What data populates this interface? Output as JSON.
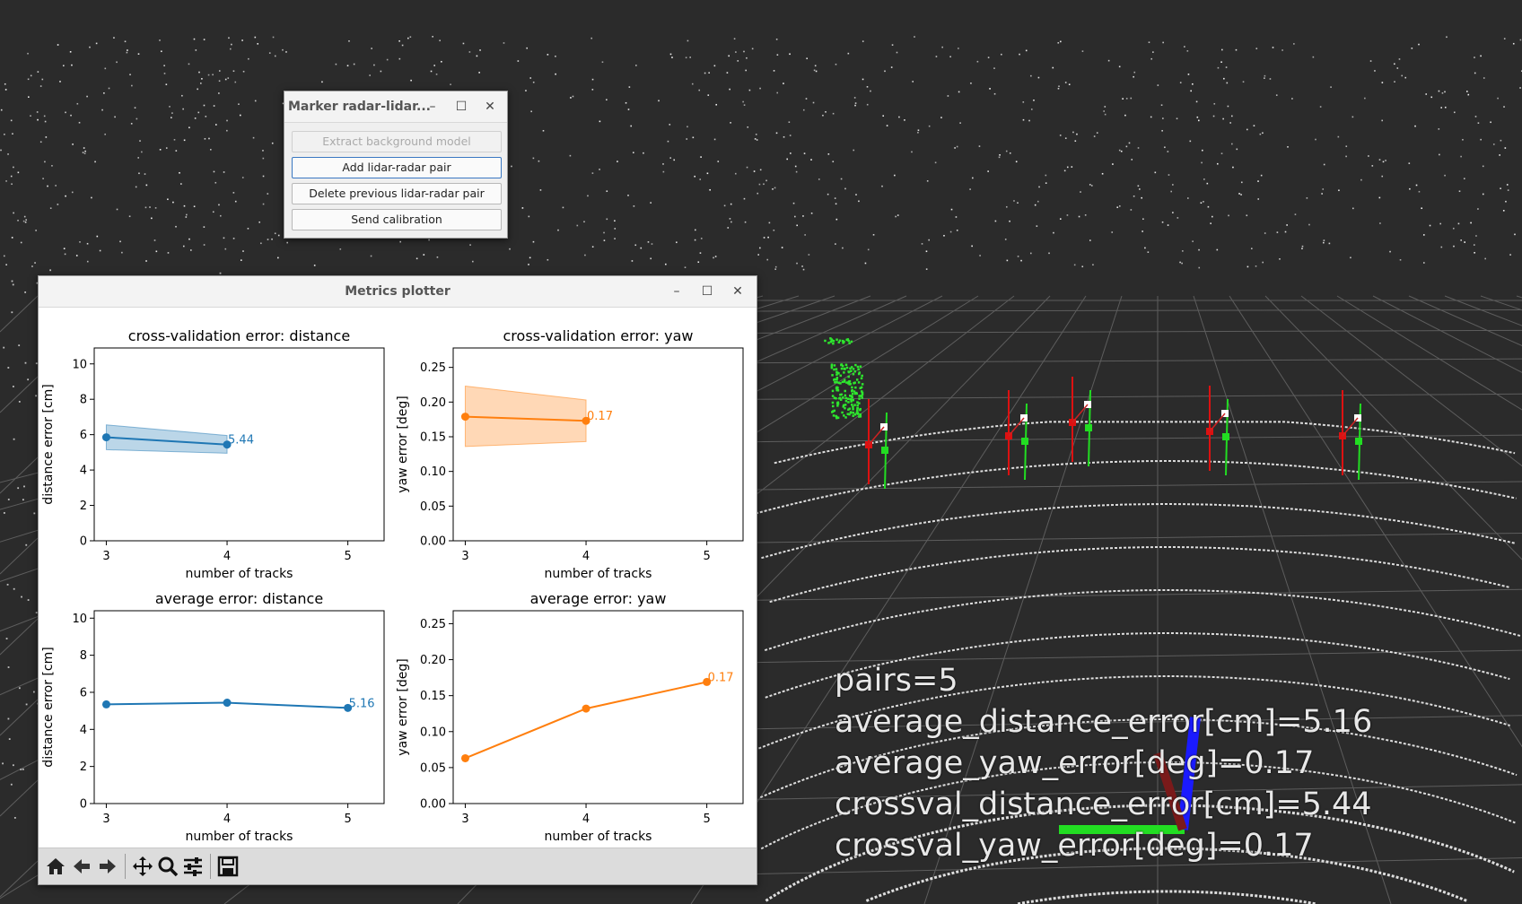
{
  "overlay": {
    "lines": [
      "pairs=5",
      "average_distance_error[cm]=5.16",
      "average_yaw_error[deg]=0.17",
      "crossval_distance_error[cm]=5.44",
      "crossval_yaw_error[deg]=0.17"
    ]
  },
  "marker_dialog": {
    "title": "Marker radar-lidar...",
    "buttons": {
      "extract": "Extract background model",
      "add_pair": "Add lidar-radar pair",
      "delete_pair": "Delete previous lidar-radar pair",
      "send": "Send calibration"
    },
    "window_controls": {
      "minimize": "–",
      "maximize": "☐",
      "close": "✕"
    }
  },
  "plotter": {
    "title": "Metrics plotter",
    "window_controls": {
      "minimize": "–",
      "maximize": "☐",
      "close": "✕"
    },
    "toolbar": [
      "home-icon",
      "back-icon",
      "forward-icon",
      "pan-icon",
      "zoom-icon",
      "configure-icon",
      "save-icon"
    ]
  },
  "chart_data": [
    {
      "type": "line",
      "title": "cross-validation error: distance",
      "xlabel": "number of tracks",
      "ylabel": "distance error [cm]",
      "x": [
        3,
        4
      ],
      "y": [
        5.85,
        5.44
      ],
      "band_low": [
        5.15,
        4.95
      ],
      "band_high": [
        6.55,
        5.95
      ],
      "xticks": [
        "3",
        "4",
        "5"
      ],
      "yticks": [
        "0",
        "2",
        "4",
        "6",
        "8",
        "10"
      ],
      "xlim": [
        2.9,
        5.3
      ],
      "ylim": [
        0,
        10.9
      ],
      "last_label": "5.44",
      "color": "#1f77b4"
    },
    {
      "type": "line",
      "title": "cross-validation error: yaw",
      "xlabel": "number of tracks",
      "ylabel": "yaw error [deg]",
      "x": [
        3,
        4
      ],
      "y": [
        0.179,
        0.173
      ],
      "band_low": [
        0.136,
        0.143
      ],
      "band_high": [
        0.223,
        0.203
      ],
      "xticks": [
        "3",
        "4",
        "5"
      ],
      "yticks": [
        "0.00",
        "0.05",
        "0.10",
        "0.15",
        "0.20",
        "0.25"
      ],
      "xlim": [
        2.9,
        5.3
      ],
      "ylim": [
        0,
        0.278
      ],
      "last_label": "0.17",
      "color": "#ff7f0e"
    },
    {
      "type": "line",
      "title": "average error: distance",
      "xlabel": "number of tracks",
      "ylabel": "distance error [cm]",
      "x": [
        3,
        4,
        5
      ],
      "y": [
        5.35,
        5.44,
        5.16
      ],
      "xticks": [
        "3",
        "4",
        "5"
      ],
      "yticks": [
        "0",
        "2",
        "4",
        "6",
        "8",
        "10"
      ],
      "xlim": [
        2.9,
        5.3
      ],
      "ylim": [
        0,
        10.4
      ],
      "last_label": "5.16",
      "color": "#1f77b4"
    },
    {
      "type": "line",
      "title": "average error: yaw",
      "xlabel": "number of tracks",
      "ylabel": "yaw error [deg]",
      "x": [
        3,
        4,
        5
      ],
      "y": [
        0.063,
        0.132,
        0.169
      ],
      "xticks": [
        "3",
        "4",
        "5"
      ],
      "yticks": [
        "0.00",
        "0.05",
        "0.10",
        "0.15",
        "0.20",
        "0.25"
      ],
      "xlim": [
        2.9,
        5.3
      ],
      "ylim": [
        0,
        0.268
      ],
      "last_label": "0.17",
      "color": "#ff7f0e"
    }
  ]
}
